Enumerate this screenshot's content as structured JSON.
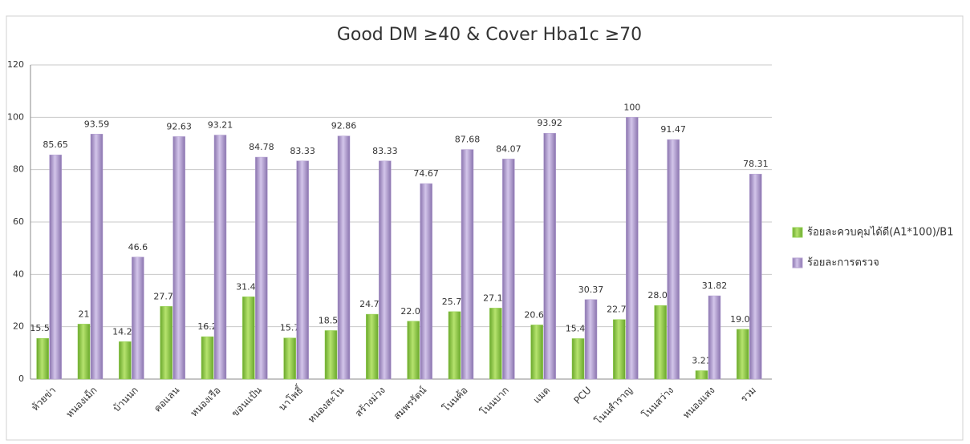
{
  "chart_data": {
    "type": "bar",
    "title": "Good DM ≥40 & Cover Hba1c ≥70",
    "categories": [
      "ห้วยข่า",
      "หนองเม็ก",
      "บ้านนก",
      "คอแลน",
      "หนองเรือ",
      "ขอนแป้น",
      "นาโพธิ์",
      "หนองสะโน",
      "สร้างม่วง",
      "สมพรรัตน์",
      "โนนค้อ",
      "โนนบาก",
      "แมด",
      "PCU",
      "โนนสำราญ",
      "โนนสว่าง",
      "หนองแสง",
      "รวม"
    ],
    "series": [
      {
        "name": "ร้อยละควบคุมได้ดี(A1*100)/B1",
        "color": "#92d050",
        "values": [
          15.54,
          21,
          14.29,
          27.75,
          16.2,
          31.43,
          15.7,
          18.53,
          24.77,
          22.09,
          25.76,
          27.12,
          20.68,
          15.47,
          22.73,
          28.09,
          3.21,
          19.02
        ]
      },
      {
        "name": "ร้อยละการตรวจ",
        "color": "#b4a0d2",
        "values": [
          85.65,
          93.59,
          46.6,
          92.63,
          93.21,
          84.78,
          83.33,
          92.86,
          83.33,
          74.67,
          87.68,
          84.07,
          93.92,
          30.37,
          100,
          91.47,
          31.82,
          78.31
        ]
      }
    ],
    "ylim": [
      0,
      120
    ],
    "yticks": [
      0,
      20,
      40,
      60,
      80,
      100,
      120
    ],
    "grid": true,
    "legend": "right"
  }
}
